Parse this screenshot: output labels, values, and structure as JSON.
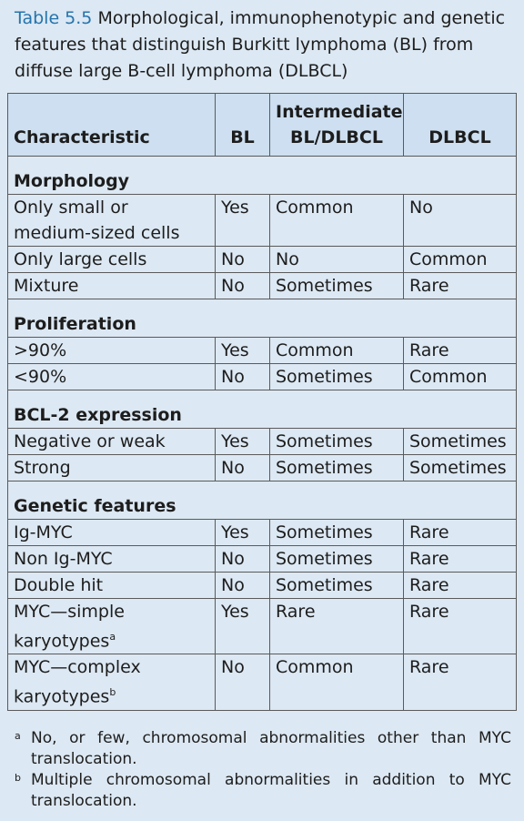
{
  "caption": {
    "label": "Table 5.5",
    "text": "Morphological, immunophenotypic and genetic features that distinguish Burkitt lymphoma (BL) from diffuse large B-cell lymphoma (DLBCL)"
  },
  "table": {
    "header": [
      "Characteristic",
      "BL",
      "Intermediate BL/DLBCL",
      "DLBCL"
    ],
    "sections": [
      {
        "title": "Morphology",
        "rows": [
          [
            "Only small or medium-sized cells",
            "Yes",
            "Common",
            "No"
          ],
          [
            "Only large cells",
            "No",
            "No",
            "Common"
          ],
          [
            "Mixture",
            "No",
            "Sometimes",
            "Rare"
          ]
        ]
      },
      {
        "title": "Proliferation",
        "rows": [
          [
            ">90%",
            "Yes",
            "Common",
            "Rare"
          ],
          [
            "<90%",
            "No",
            "Sometimes",
            "Common"
          ]
        ]
      },
      {
        "title": "BCL-2 expression",
        "rows": [
          [
            "Negative or weak",
            "Yes",
            "Sometimes",
            "Sometimes"
          ],
          [
            "Strong",
            "No",
            "Sometimes",
            "Sometimes"
          ]
        ]
      },
      {
        "title": "Genetic features",
        "rows": [
          [
            "Ig-MYC",
            "Yes",
            "Sometimes",
            "Rare"
          ],
          [
            "Non Ig-MYC",
            "No",
            "Sometimes",
            "Rare"
          ],
          [
            "Double hit",
            "No",
            "Sometimes",
            "Rare"
          ],
          [
            {
              "text": "MYC—simple karyotypes",
              "note": "a"
            },
            "Yes",
            "Rare",
            "Rare"
          ],
          [
            {
              "text": "MYC—complex karyotypes",
              "note": "b"
            },
            "No",
            "Common",
            "Rare"
          ]
        ]
      }
    ]
  },
  "footnotes": [
    {
      "mark": "a",
      "text": "No, or few, chromosomal abnormalities other than MYC translocation."
    },
    {
      "mark": "b",
      "text": "Multiple chromosomal abnormalities in addition to MYC translocation."
    }
  ]
}
